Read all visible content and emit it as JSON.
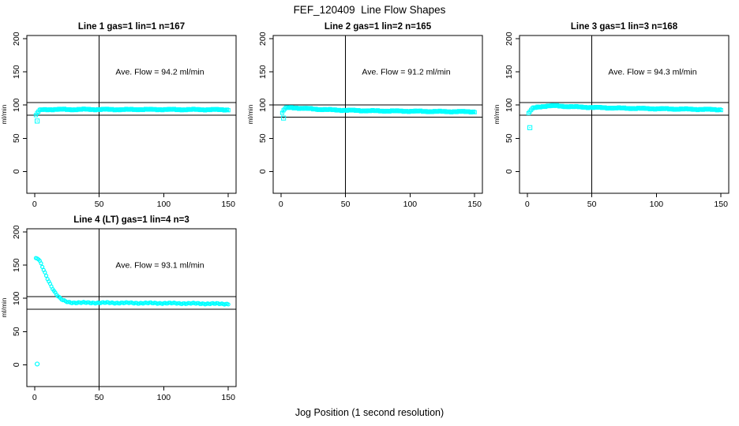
{
  "figure": {
    "title": "FEF_120409  Line Flow Shapes",
    "xlabel": "Jog Position (1 second resolution)",
    "ylabel": "ml/min",
    "marker_color": "#00FFFF",
    "axis_color": "#000000",
    "background": "#FFFFFF"
  },
  "chart_data": [
    {
      "type": "scatter",
      "title": "Line 1 gas=1 lin=1 n=167",
      "n": 167,
      "ave_flow": 94.2,
      "annotation": "Ave. Flow =  94.2  ml/min",
      "xlabel": "Jog Position (1 second resolution)",
      "ylabel": "ml/min",
      "x_ticks": [
        0,
        50,
        100,
        150
      ],
      "y_ticks": [
        0,
        50,
        100,
        150,
        200
      ],
      "xlim": [
        -6,
        156
      ],
      "ylim": [
        -33,
        205
      ],
      "grid": false,
      "vline_x": 50,
      "hlines": [
        103.6,
        84.8
      ],
      "marker": "square-dot",
      "keypoints": [
        [
          1,
          84
        ],
        [
          2,
          88
        ],
        [
          3,
          90.5
        ],
        [
          4,
          92
        ],
        [
          6,
          93
        ],
        [
          10,
          93.3
        ],
        [
          20,
          93.5
        ],
        [
          30,
          93.3
        ],
        [
          40,
          93.6
        ],
        [
          50,
          93.4
        ],
        [
          60,
          93.4
        ],
        [
          70,
          93.2
        ],
        [
          80,
          93.5
        ],
        [
          90,
          93.3
        ],
        [
          100,
          93.4
        ],
        [
          110,
          93.2
        ],
        [
          120,
          93.3
        ],
        [
          130,
          93.2
        ],
        [
          140,
          93.1
        ],
        [
          150,
          93
        ]
      ],
      "outlier": [
        2,
        76
      ]
    },
    {
      "type": "scatter",
      "title": "Line 2 gas=1 lin=2 n=165",
      "n": 165,
      "ave_flow": 91.2,
      "annotation": "Ave. Flow =  91.2  ml/min",
      "xlabel": "Jog Position (1 second resolution)",
      "ylabel": "ml/min",
      "x_ticks": [
        0,
        50,
        100,
        150
      ],
      "y_ticks": [
        0,
        50,
        100,
        150,
        200
      ],
      "xlim": [
        -6,
        156
      ],
      "ylim": [
        -33,
        205
      ],
      "grid": false,
      "vline_x": 50,
      "hlines": [
        100.3,
        82.1
      ],
      "marker": "square-dot",
      "keypoints": [
        [
          1,
          87.5
        ],
        [
          2,
          92
        ],
        [
          3,
          94.5
        ],
        [
          4,
          95.5
        ],
        [
          6,
          96
        ],
        [
          8,
          96.2
        ],
        [
          12,
          95.8
        ],
        [
          16,
          95.2
        ],
        [
          20,
          94.8
        ],
        [
          25,
          94.2
        ],
        [
          30,
          93.6
        ],
        [
          40,
          92.8
        ],
        [
          50,
          92.2
        ],
        [
          60,
          91.8
        ],
        [
          70,
          91.4
        ],
        [
          80,
          91.2
        ],
        [
          90,
          91
        ],
        [
          100,
          90.8
        ],
        [
          110,
          90.6
        ],
        [
          120,
          90.4
        ],
        [
          130,
          90.2
        ],
        [
          140,
          90.1
        ],
        [
          150,
          90
        ]
      ],
      "outlier": [
        2,
        80.5
      ]
    },
    {
      "type": "scatter",
      "title": "Line 3 gas=1 lin=3 n=168",
      "n": 168,
      "ave_flow": 94.3,
      "annotation": "Ave. Flow =  94.3  ml/min",
      "xlabel": "Jog Position (1 second resolution)",
      "ylabel": "ml/min",
      "x_ticks": [
        0,
        50,
        100,
        150
      ],
      "y_ticks": [
        0,
        50,
        100,
        150,
        200
      ],
      "xlim": [
        -6,
        156
      ],
      "ylim": [
        -33,
        205
      ],
      "grid": false,
      "vline_x": 50,
      "hlines": [
        103.7,
        84.9
      ],
      "marker": "square-dot",
      "keypoints": [
        [
          1,
          87
        ],
        [
          2,
          90
        ],
        [
          3,
          93
        ],
        [
          5,
          95.5
        ],
        [
          8,
          97
        ],
        [
          12,
          98
        ],
        [
          16,
          98.7
        ],
        [
          20,
          99
        ],
        [
          25,
          98.6
        ],
        [
          30,
          98
        ],
        [
          40,
          97.2
        ],
        [
          50,
          96.5
        ],
        [
          60,
          96
        ],
        [
          70,
          95.5
        ],
        [
          80,
          95.2
        ],
        [
          90,
          94.8
        ],
        [
          100,
          94.5
        ],
        [
          110,
          94.2
        ],
        [
          120,
          94
        ],
        [
          130,
          93.7
        ],
        [
          140,
          93.4
        ],
        [
          150,
          93.2
        ]
      ],
      "outlier": [
        2,
        66
      ]
    },
    {
      "type": "scatter",
      "title": "Line 4 (LT) gas=1 lin=4 n=3",
      "n": 3,
      "ave_flow": 93.1,
      "annotation": "Ave. Flow =  93.1  ml/min",
      "xlabel": "Jog Position (1 second resolution)",
      "ylabel": "ml/min",
      "x_ticks": [
        0,
        50,
        100,
        150
      ],
      "y_ticks": [
        0,
        50,
        100,
        150,
        200
      ],
      "xlim": [
        -6,
        156
      ],
      "ylim": [
        -33,
        205
      ],
      "grid": false,
      "vline_x": 50,
      "hlines": [
        102.4,
        83.8
      ],
      "marker": "circle",
      "keypoints": [
        [
          1,
          160
        ],
        [
          2,
          160
        ],
        [
          3,
          159
        ],
        [
          4,
          156
        ],
        [
          5,
          152
        ],
        [
          6,
          147.5
        ],
        [
          7,
          143
        ],
        [
          8,
          138.5
        ],
        [
          9,
          134
        ],
        [
          10,
          130
        ],
        [
          11,
          126
        ],
        [
          12,
          122
        ],
        [
          13,
          118.5
        ],
        [
          14,
          115
        ],
        [
          15,
          111.5
        ],
        [
          16,
          108.5
        ],
        [
          17,
          106
        ],
        [
          18,
          103.5
        ],
        [
          19,
          101.5
        ],
        [
          20,
          99.5
        ],
        [
          22,
          97
        ],
        [
          24,
          95.5
        ],
        [
          26,
          94.5
        ],
        [
          28,
          94
        ],
        [
          30,
          93.7
        ],
        [
          35,
          93.5
        ],
        [
          40,
          93.5
        ],
        [
          50,
          93.4
        ],
        [
          60,
          93.3
        ],
        [
          70,
          93.2
        ],
        [
          80,
          93
        ],
        [
          90,
          92.9
        ],
        [
          100,
          92.8
        ],
        [
          110,
          92.6
        ],
        [
          120,
          92.4
        ],
        [
          130,
          92.2
        ],
        [
          140,
          91.9
        ],
        [
          150,
          91.7
        ]
      ],
      "outlier": [
        2,
        1
      ]
    }
  ]
}
